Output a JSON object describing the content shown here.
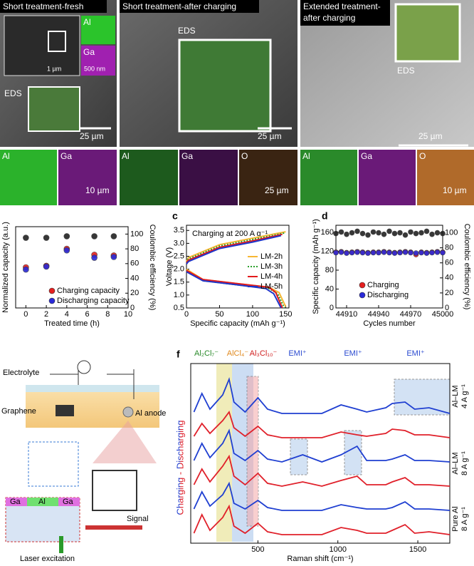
{
  "images": [
    {
      "title": "Short treatment-fresh",
      "inset": [
        "Al",
        "Ga",
        "1 µm",
        "500 nm"
      ],
      "eds": "EDS",
      "scale": "25 µm",
      "maps": [
        "Al",
        "Ga"
      ],
      "map_scale": "10 µm"
    },
    {
      "title": "Short treatment-after charging",
      "eds": "EDS",
      "scale": "25 µm",
      "maps": [
        "Al",
        "Ga",
        "O"
      ],
      "map_scale": "25 µm"
    },
    {
      "title": [
        "Extended treatment-",
        "after charging"
      ],
      "eds": "EDS",
      "scale": "25 µm",
      "maps": [
        "Al",
        "Ga",
        "O"
      ],
      "map_scale": "10 µm"
    }
  ],
  "schematic": {
    "electrolyte": "Electrolyte",
    "graphene": "Graphene",
    "anode": "Al anode",
    "signal": "Signal",
    "laser": "Laser excitation",
    "layers": [
      "Ga",
      "Al",
      "Ga"
    ]
  },
  "chart_data": [
    {
      "type": "scatter",
      "xlabel": "Treated time (h)",
      "ylabel": "Normalized capacity (a.u.)",
      "y2label": "Coulombic efficiency (%)",
      "x": [
        0,
        2,
        4,
        6.7,
        8.6
      ],
      "xlim": [
        -1,
        10
      ],
      "xticks": [
        0,
        2,
        4,
        6,
        8,
        10
      ],
      "ylim": [
        0,
        110
      ],
      "y2lim": [
        0,
        110
      ],
      "y2ticks": [
        0,
        20,
        40,
        60,
        80,
        100
      ],
      "legend": "lower right",
      "series": [
        {
          "name": "Charging capacity",
          "color": "#e52020",
          "values": [
            55,
            57,
            80,
            72,
            71
          ]
        },
        {
          "name": "Discharging capacity",
          "color": "#2a2ad8",
          "values": [
            52,
            56,
            78,
            68,
            69
          ]
        },
        {
          "color": "#222222",
          "axis": "y2",
          "values": [
            95,
            95,
            97,
            97,
            97
          ]
        }
      ]
    },
    {
      "type": "line",
      "panel": "c",
      "annotation": "Charging at 200 A g⁻¹",
      "xlabel": "Specific capacity (mAh g⁻¹)",
      "ylabel": "Voltage (V)",
      "xlim": [
        0,
        155
      ],
      "xticks": [
        0,
        50,
        100,
        150
      ],
      "ylim": [
        0.5,
        3.7
      ],
      "yticks": [
        0.5,
        {
          "value": 1,
          "label": "1.0"
        },
        1.5,
        {
          "value": 2,
          "label": "2.0"
        },
        2.5,
        {
          "value": 3,
          "label": "3.0"
        },
        3.5
      ],
      "legend": "center right",
      "series": [
        {
          "name": "LM-2h",
          "color": "#f7b733",
          "x": [
            0,
            3,
            50,
            100,
            150,
            null,
            0,
            25,
            75,
            125,
            140,
            150
          ],
          "values": [
            2.3,
            2.45,
            2.95,
            3.2,
            3.45,
            null,
            2.0,
            1.6,
            1.45,
            1.3,
            1.1,
            0.55
          ]
        },
        {
          "name": "LM-3h",
          "color": "#2ca02c",
          "dotted": true,
          "x": [
            0,
            3,
            50,
            100,
            148,
            null,
            0,
            25,
            75,
            125,
            138,
            148
          ],
          "values": [
            2.25,
            2.4,
            2.9,
            3.15,
            3.4,
            null,
            1.95,
            1.55,
            1.4,
            1.25,
            1.05,
            0.5
          ]
        },
        {
          "name": "LM-4h",
          "color": "#e31a1c",
          "x": [
            0,
            3,
            50,
            100,
            145,
            null,
            0,
            25,
            75,
            125,
            135,
            145
          ],
          "values": [
            2.25,
            2.35,
            2.85,
            3.1,
            3.35,
            null,
            1.95,
            1.6,
            1.45,
            1.3,
            1.1,
            0.5
          ]
        },
        {
          "name": "LM-5h",
          "color": "#1f35c9",
          "x": [
            0,
            3,
            50,
            100,
            143,
            null,
            0,
            25,
            75,
            120,
            132,
            143
          ],
          "values": [
            2.2,
            2.3,
            2.8,
            3.05,
            3.3,
            null,
            1.9,
            1.55,
            1.4,
            1.25,
            1.05,
            0.5
          ]
        }
      ]
    },
    {
      "type": "scatter",
      "panel": "d",
      "xlabel": "Cycles number",
      "ylabel": "Specific capacity (mAh g⁻¹)",
      "y2label": "Coulombic efficiency (%)",
      "x": [
        44900,
        44905,
        44910,
        44915,
        44920,
        44925,
        44930,
        44935,
        44940,
        44945,
        44950,
        44955,
        44960,
        44965,
        44970,
        44975,
        44980,
        44985,
        44990,
        44995,
        45000
      ],
      "xlim": [
        44900,
        45000
      ],
      "xticks": [
        44910,
        44940,
        44970,
        45000
      ],
      "ylim": [
        0,
        175
      ],
      "yticks": [
        0,
        40,
        80,
        120,
        160
      ],
      "y2lim": [
        0,
        110
      ],
      "y2ticks": [
        0,
        20,
        40,
        60,
        80,
        100
      ],
      "legend": "lower left",
      "series": [
        {
          "color": "#222222",
          "axis": "y2",
          "values": [
            99,
            101,
            98,
            100,
            102,
            99,
            97,
            101,
            100,
            98,
            102,
            99,
            100,
            97,
            101,
            99,
            100,
            102,
            98,
            100,
            99
          ]
        },
        {
          "name": "Charging",
          "color": "#e52020",
          "values": [
            118,
            119,
            117,
            118,
            119,
            118,
            117,
            118,
            118,
            119,
            118,
            117,
            118,
            119,
            118,
            113,
            118,
            117,
            118,
            119,
            118
          ]
        },
        {
          "name": "Discharging",
          "color": "#2a2ad8",
          "values": [
            117,
            118,
            116,
            117,
            118,
            117,
            116,
            117,
            117,
            118,
            117,
            116,
            117,
            118,
            117,
            116,
            117,
            116,
            117,
            118,
            117
          ]
        }
      ]
    },
    {
      "type": "line",
      "panel": "f",
      "xlabel": "Raman shift (cm⁻¹)",
      "side_label": "Charging - Discharging",
      "annotations": [
        "Al₂Cl₇⁻",
        "AlCl₄⁻",
        "Al₃Cl₁₀⁻",
        "EMI⁺",
        "EMI⁺",
        "EMI⁺"
      ],
      "groups": [
        [
          "Al–LM",
          "4 A g⁻¹"
        ],
        [
          "Al–LM",
          "8 A g⁻¹"
        ],
        [
          "Pure Al",
          "8 A g⁻¹"
        ]
      ],
      "x": [
        100,
        150,
        200,
        280,
        320,
        350,
        420,
        500,
        560,
        650,
        780,
        900,
        1020,
        1120,
        1180,
        1300,
        1340,
        1420,
        1480,
        1570,
        1700
      ],
      "xlim": [
        80,
        1700
      ],
      "xticks": [
        500,
        1000,
        1500
      ],
      "ylim": [
        0,
        3
      ],
      "series": [
        {
          "color": "#e0202a",
          "values": [
            0.3,
            1.6,
            0.5,
            1.4,
            2.2,
            0.8,
            0.3,
            1.0,
            0.4,
            0.2,
            0.2,
            0.2,
            0.7,
            0.5,
            0.3,
            0.3,
            0.5,
            0.9,
            0.3,
            0.4,
            0.2
          ]
        },
        {
          "color": "#1f3fd1",
          "values": [
            0.3,
            1.5,
            0.5,
            1.3,
            2.1,
            0.7,
            0.3,
            0.9,
            0.4,
            0.2,
            0.2,
            0.2,
            0.6,
            0.4,
            0.3,
            0.3,
            0.4,
            0.8,
            0.3,
            0.3,
            0.2
          ]
        },
        {
          "color": "#e0202a",
          "values": [
            0.3,
            1.4,
            0.5,
            1.6,
            2.3,
            0.9,
            0.3,
            1.1,
            0.4,
            0.2,
            0.5,
            0.2,
            0.6,
            0.9,
            0.3,
            0.3,
            0.5,
            0.8,
            0.3,
            0.3,
            0.2
          ]
        },
        {
          "color": "#1f3fd1",
          "values": [
            0.3,
            1.5,
            0.5,
            1.5,
            2.4,
            0.8,
            0.3,
            1.0,
            0.4,
            0.2,
            0.7,
            0.2,
            0.7,
            1.3,
            0.3,
            0.3,
            0.4,
            0.7,
            0.3,
            0.3,
            0.2
          ]
        },
        {
          "color": "#e0202a",
          "values": [
            0.3,
            1.2,
            0.5,
            1.4,
            2.0,
            0.9,
            0.3,
            1.0,
            0.4,
            0.2,
            0.2,
            0.2,
            0.6,
            0.4,
            0.3,
            0.5,
            0.8,
            0.7,
            0.4,
            0.4,
            0.2
          ]
        },
        {
          "color": "#1f3fd1",
          "values": [
            0.3,
            1.6,
            0.5,
            1.5,
            2.6,
            1.0,
            0.3,
            1.3,
            0.5,
            0.2,
            0.2,
            0.2,
            0.8,
            0.5,
            0.3,
            0.6,
            0.9,
            1.0,
            0.5,
            0.6,
            0.2
          ]
        }
      ]
    }
  ]
}
